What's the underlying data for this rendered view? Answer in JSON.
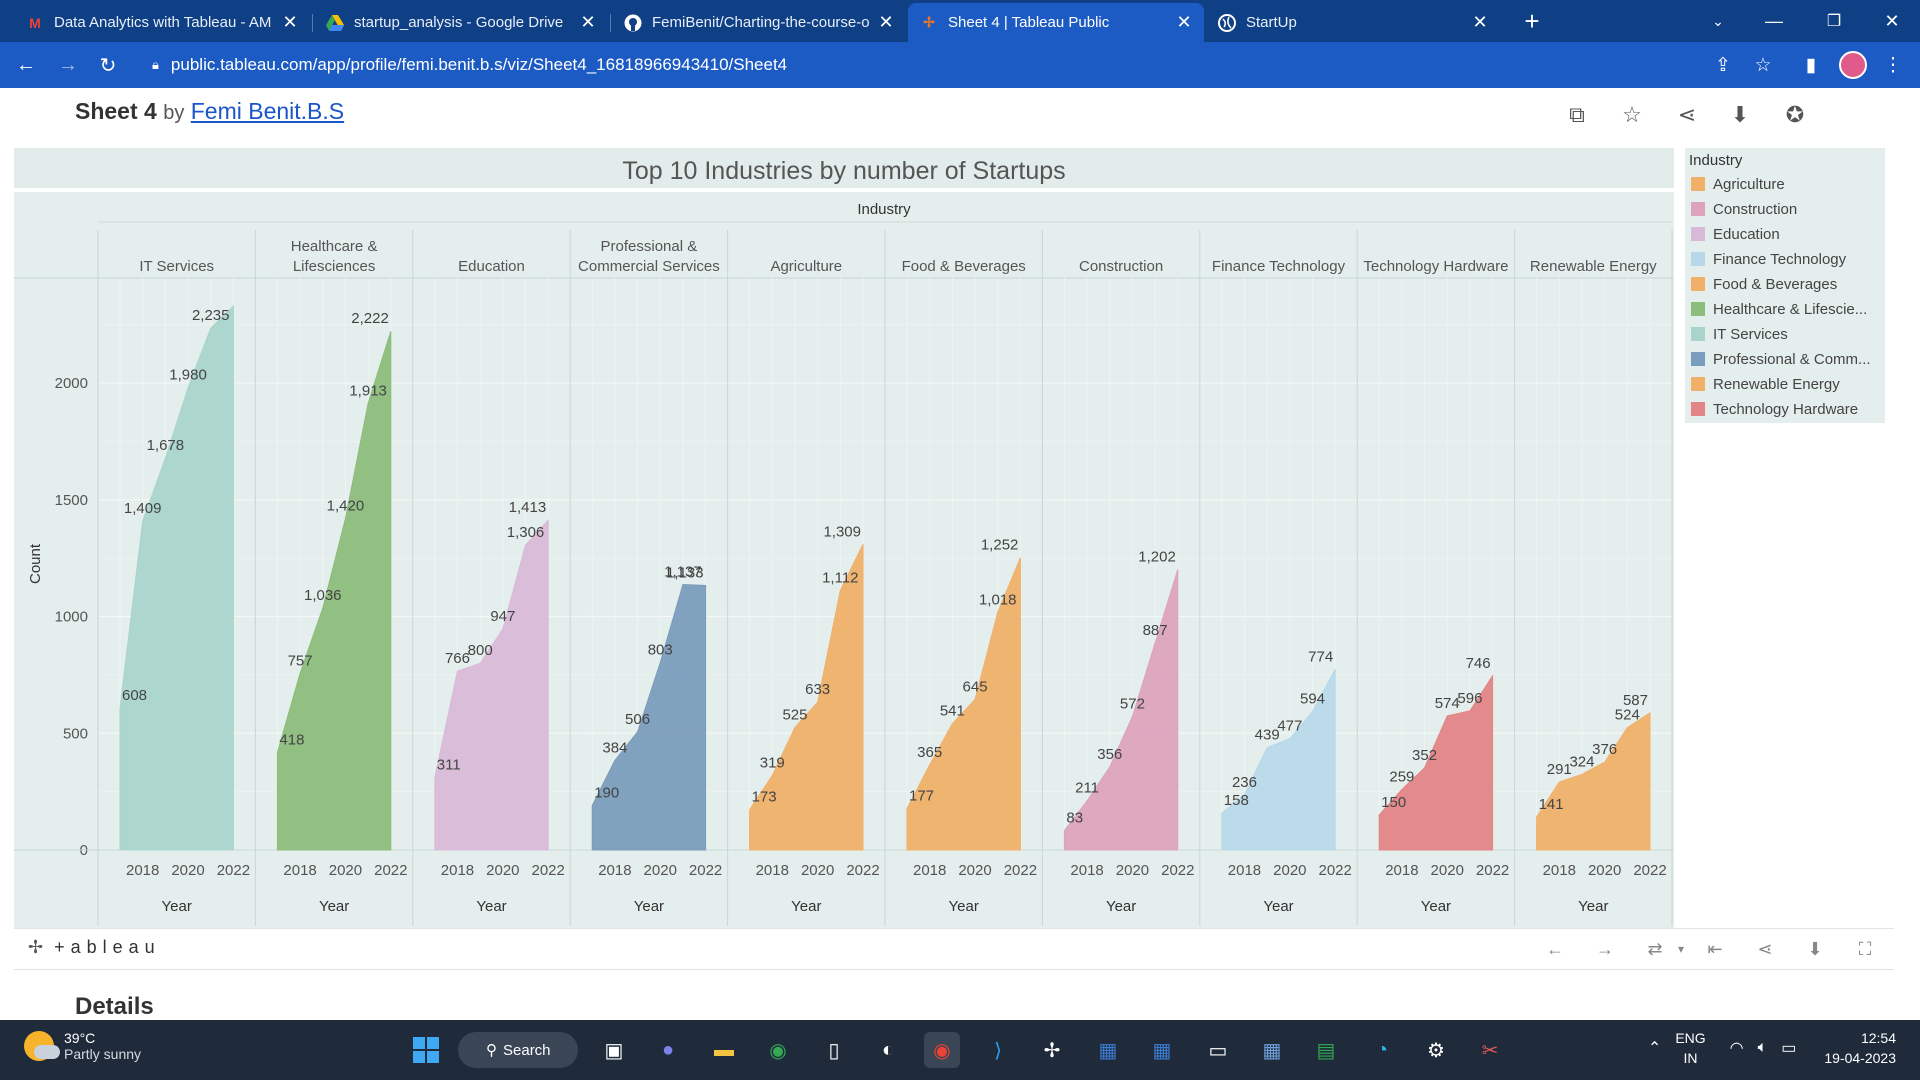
{
  "browser": {
    "tabs": [
      {
        "title": "Data Analytics with Tableau - AM",
        "icon": "gmail-icon",
        "favicon_color": "#ea4335",
        "active": false
      },
      {
        "title": "startup_analysis - Google Drive",
        "icon": "drive-icon",
        "favicon_color": "#fbbc04",
        "active": false
      },
      {
        "title": "FemiBenit/Charting-the-course-o",
        "icon": "github-icon",
        "favicon_color": "#ffffff",
        "active": false
      },
      {
        "title": "Sheet 4 | Tableau Public",
        "icon": "tableau-icon",
        "favicon_color": "#e97627",
        "active": true
      },
      {
        "title": "StartUp",
        "icon": "globe-icon",
        "favicon_color": "#ffffff",
        "active": false
      }
    ],
    "new_tab": "+",
    "url": "public.tableau.com/app/profile/femi.benit.b.s/viz/Sheet4_16818966943410/Sheet4"
  },
  "page": {
    "sheet_title": "Sheet 4",
    "by": "by",
    "author": "Femi Benit.B.S",
    "details_heading": "Details"
  },
  "chart_data": {
    "type": "area",
    "title": "Top 10 Industries by number of Startups",
    "column_header": "Industry",
    "ylabel": "Count",
    "xlabel": "Year",
    "ylim": [
      0,
      2450
    ],
    "yticks": [
      0,
      500,
      1000,
      1500,
      2000
    ],
    "xticks": [
      2018,
      2020,
      2022
    ],
    "x": [
      2017,
      2018,
      2019,
      2020,
      2021,
      2022
    ],
    "grid": true,
    "legend_title": "Industry",
    "legend_position": "right",
    "legend": [
      {
        "label": "Agriculture",
        "color": "#f0b06a"
      },
      {
        "label": "Construction",
        "color": "#dda3bd"
      },
      {
        "label": "Education",
        "color": "#d9b9d8"
      },
      {
        "label": "Finance Technology",
        "color": "#b8d8ea"
      },
      {
        "label": "Food & Beverages",
        "color": "#f0b06a"
      },
      {
        "label": "Healthcare & Lifescie...",
        "color": "#8cbd7c"
      },
      {
        "label": "IT Services",
        "color": "#a9d4cc"
      },
      {
        "label": "Professional & Comm...",
        "color": "#7b9dbd"
      },
      {
        "label": "Renewable Energy",
        "color": "#f0b06a"
      },
      {
        "label": "Technology Hardware",
        "color": "#e38487"
      }
    ],
    "panels": [
      {
        "name": "IT Services",
        "header": [
          "IT Services"
        ],
        "color": "#a9d4cc",
        "values": [
          608,
          1409,
          1678,
          1980,
          2235,
          2330
        ]
      },
      {
        "name": "Healthcare & Lifesciences",
        "header": [
          "Healthcare &",
          "Lifesciences"
        ],
        "color": "#8cbd7c",
        "values": [
          418,
          757,
          1036,
          1420,
          1913,
          2222
        ]
      },
      {
        "name": "Education",
        "header": [
          "Education"
        ],
        "color": "#d9b9d8",
        "values": [
          311,
          766,
          800,
          947,
          1306,
          1413
        ]
      },
      {
        "name": "Professional & Commercial Services",
        "header": [
          "Professional &",
          "Commercial Services"
        ],
        "color": "#7b9dbd",
        "values": [
          190,
          384,
          506,
          803,
          1137,
          1133
        ]
      },
      {
        "name": "Agriculture",
        "header": [
          "Agriculture"
        ],
        "color": "#f0b06a",
        "values": [
          173,
          319,
          525,
          633,
          1112,
          1309
        ]
      },
      {
        "name": "Food & Beverages",
        "header": [
          "Food & Beverages"
        ],
        "color": "#f0b06a",
        "values": [
          177,
          365,
          541,
          645,
          1018,
          1252
        ]
      },
      {
        "name": "Construction",
        "header": [
          "Construction"
        ],
        "color": "#dda3bd",
        "values": [
          83,
          211,
          356,
          572,
          887,
          1202
        ]
      },
      {
        "name": "Finance Technology",
        "header": [
          "Finance Technology"
        ],
        "color": "#b8d8ea",
        "values": [
          158,
          236,
          439,
          477,
          594,
          774
        ]
      },
      {
        "name": "Technology Hardware",
        "header": [
          "Technology Hardware"
        ],
        "color": "#e38487",
        "values": [
          150,
          259,
          352,
          574,
          596,
          746
        ]
      },
      {
        "name": "Renewable Energy",
        "header": [
          "Renewable Energy"
        ],
        "color": "#f0b06a",
        "values": [
          141,
          291,
          324,
          376,
          524,
          587
        ]
      }
    ],
    "data_labels": [
      [
        608,
        1409,
        1678,
        1980,
        2235,
        null
      ],
      [
        418,
        757,
        1036,
        1420,
        1913,
        2222
      ],
      [
        311,
        766,
        800,
        947,
        1306,
        1413
      ],
      [
        190,
        384,
        506,
        803,
        1137,
        1133
      ],
      [
        173,
        319,
        525,
        633,
        1112,
        1309
      ],
      [
        177,
        365,
        541,
        645,
        1018,
        1252
      ],
      [
        83,
        211,
        356,
        572,
        887,
        1202
      ],
      [
        158,
        236,
        439,
        477,
        594,
        774
      ],
      [
        150,
        259,
        352,
        574,
        596,
        746
      ],
      [
        141,
        291,
        324,
        376,
        524,
        587
      ]
    ]
  },
  "tableau_bar": {
    "logo": "+ableau"
  },
  "taskbar": {
    "temperature": "39°C",
    "weather": "Partly sunny",
    "search_label": "Search",
    "lang_line1": "ENG",
    "lang_line2": "IN",
    "time": "12:54",
    "date": "19-04-2023"
  }
}
